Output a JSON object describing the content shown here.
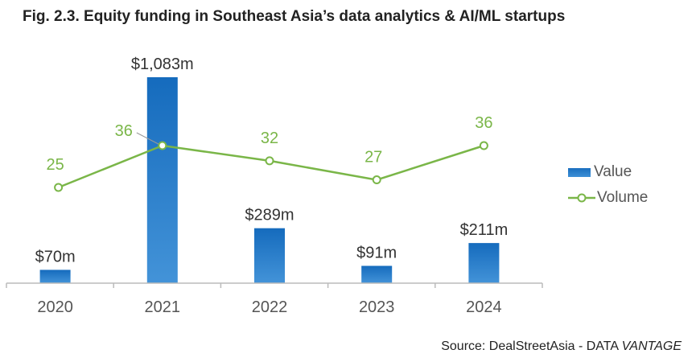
{
  "title": "Fig. 2.3. Equity funding in Southeast Asia’s data analytics &  AI/ML startups",
  "source": {
    "prefix": "Source: DealStreetAsia - DATA ",
    "italic": "VANTAGE"
  },
  "colors": {
    "bar": "#1f77c4",
    "line": "#7ab648",
    "axis": "#bbbbbb"
  },
  "chart_data": {
    "type": "bar",
    "categories": [
      "2020",
      "2021",
      "2022",
      "2023",
      "2024"
    ],
    "series": [
      {
        "name": "Value",
        "type": "bar",
        "unit": "$m",
        "values": [
          70,
          1083,
          289,
          91,
          211
        ],
        "labels": [
          "$70m",
          "$1,083m",
          "$289m",
          "$91m",
          "$211m"
        ]
      },
      {
        "name": "Volume",
        "type": "line",
        "values": [
          25,
          36,
          32,
          27,
          36
        ],
        "labels": [
          "25",
          "36",
          "32",
          "27",
          "36"
        ]
      }
    ],
    "legend_position": "right",
    "grid": false
  }
}
